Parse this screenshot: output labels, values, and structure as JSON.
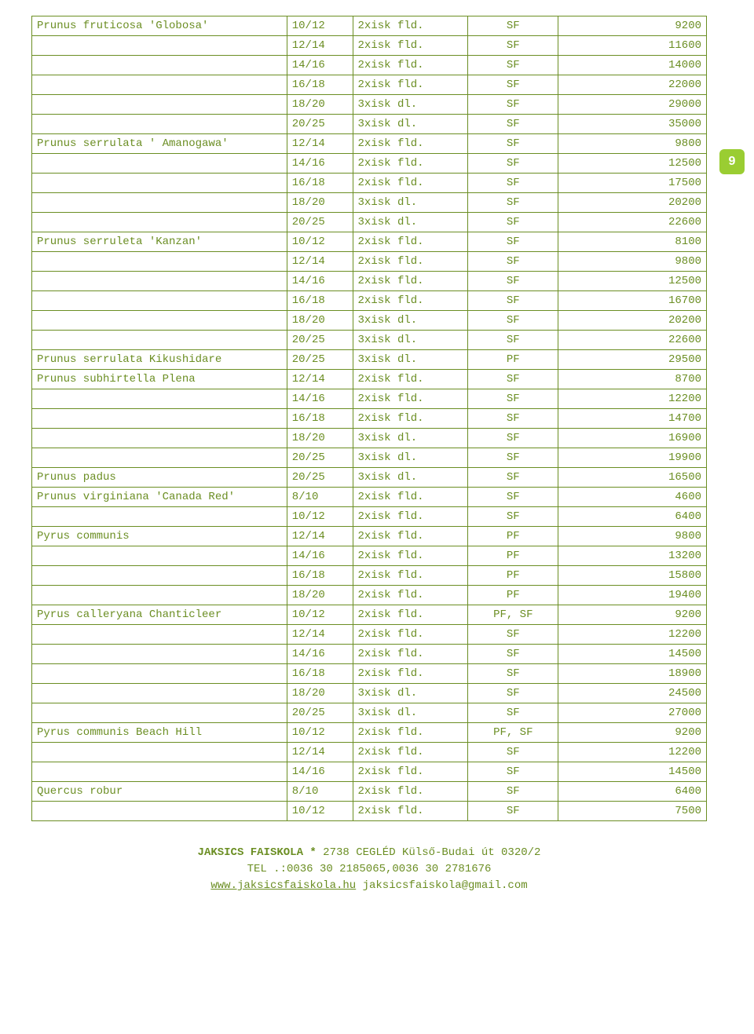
{
  "page_number": "9",
  "table": {
    "rows": [
      {
        "name": "Prunus fruticosa 'Globosa'",
        "size": "10/12",
        "spec": "2xisk fld.",
        "code": "SF",
        "price": "9200"
      },
      {
        "name": "",
        "size": "12/14",
        "spec": "2xisk fld.",
        "code": "SF",
        "price": "11600"
      },
      {
        "name": "",
        "size": "14/16",
        "spec": "2xisk fld.",
        "code": "SF",
        "price": "14000"
      },
      {
        "name": "",
        "size": "16/18",
        "spec": "2xisk fld.",
        "code": "SF",
        "price": "22000"
      },
      {
        "name": "",
        "size": "18/20",
        "spec": "3xisk dl.",
        "code": "SF",
        "price": "29000"
      },
      {
        "name": "",
        "size": "20/25",
        "spec": "3xisk dl.",
        "code": "SF",
        "price": "35000"
      },
      {
        "name": "Prunus serrulata ' Amanogawa'",
        "size": "12/14",
        "spec": "2xisk fld.",
        "code": "SF",
        "price": "9800"
      },
      {
        "name": "",
        "size": "14/16",
        "spec": "2xisk fld.",
        "code": "SF",
        "price": "12500"
      },
      {
        "name": "",
        "size": "16/18",
        "spec": "2xisk fld.",
        "code": "SF",
        "price": "17500"
      },
      {
        "name": "",
        "size": "18/20",
        "spec": "3xisk dl.",
        "code": "SF",
        "price": "20200"
      },
      {
        "name": "",
        "size": "20/25",
        "spec": "3xisk dl.",
        "code": "SF",
        "price": "22600"
      },
      {
        "name": "Prunus serruleta 'Kanzan'",
        "size": "10/12",
        "spec": "2xisk fld.",
        "code": "SF",
        "price": "8100"
      },
      {
        "name": "",
        "size": "12/14",
        "spec": "2xisk fld.",
        "code": "SF",
        "price": "9800"
      },
      {
        "name": "",
        "size": "14/16",
        "spec": "2xisk fld.",
        "code": "SF",
        "price": "12500"
      },
      {
        "name": "",
        "size": "16/18",
        "spec": "2xisk fld.",
        "code": "SF",
        "price": "16700"
      },
      {
        "name": "",
        "size": "18/20",
        "spec": "3xisk dl.",
        "code": "SF",
        "price": "20200"
      },
      {
        "name": "",
        "size": "20/25",
        "spec": "3xisk dl.",
        "code": "SF",
        "price": "22600"
      },
      {
        "name": "Prunus serrulata Kikushidare",
        "size": "20/25",
        "spec": "3xisk dl.",
        "code": "PF",
        "price": "29500"
      },
      {
        "name": "Prunus subhirtella Plena",
        "size": "12/14",
        "spec": "2xisk fld.",
        "code": "SF",
        "price": "8700"
      },
      {
        "name": "",
        "size": "14/16",
        "spec": "2xisk fld.",
        "code": "SF",
        "price": "12200"
      },
      {
        "name": "",
        "size": "16/18",
        "spec": "2xisk fld.",
        "code": "SF",
        "price": "14700"
      },
      {
        "name": "",
        "size": "18/20",
        "spec": "3xisk dl.",
        "code": "SF",
        "price": "16900"
      },
      {
        "name": "",
        "size": "20/25",
        "spec": "3xisk dl.",
        "code": "SF",
        "price": "19900"
      },
      {
        "name": "Prunus padus",
        "size": "20/25",
        "spec": "3xisk dl.",
        "code": "SF",
        "price": "16500"
      },
      {
        "name": "Prunus virginiana 'Canada Red'",
        "size": "8/10",
        "spec": "2xisk fld.",
        "code": "SF",
        "price": "4600"
      },
      {
        "name": "",
        "size": "10/12",
        "spec": "2xisk fld.",
        "code": "SF",
        "price": "6400"
      },
      {
        "name": "Pyrus communis",
        "size": "12/14",
        "spec": "2xisk fld.",
        "code": "PF",
        "price": "9800"
      },
      {
        "name": "",
        "size": "14/16",
        "spec": "2xisk fld.",
        "code": "PF",
        "price": "13200"
      },
      {
        "name": "",
        "size": "16/18",
        "spec": "2xisk fld.",
        "code": "PF",
        "price": "15800"
      },
      {
        "name": "",
        "size": "18/20",
        "spec": "2xisk fld.",
        "code": "PF",
        "price": "19400"
      },
      {
        "name": "Pyrus calleryana Chanticleer",
        "size": "10/12",
        "spec": "2xisk fld.",
        "code": "PF, SF",
        "price": "9200"
      },
      {
        "name": "",
        "size": "12/14",
        "spec": "2xisk fld.",
        "code": "SF",
        "price": "12200"
      },
      {
        "name": "",
        "size": "14/16",
        "spec": "2xisk fld.",
        "code": "SF",
        "price": "14500"
      },
      {
        "name": "",
        "size": "16/18",
        "spec": "2xisk fld.",
        "code": "SF",
        "price": "18900"
      },
      {
        "name": "",
        "size": "18/20",
        "spec": "3xisk dl.",
        "code": "SF",
        "price": "24500"
      },
      {
        "name": "",
        "size": "20/25",
        "spec": "3xisk dl.",
        "code": "SF",
        "price": "27000"
      },
      {
        "name": "Pyrus communis Beach Hill",
        "size": "10/12",
        "spec": "2xisk fld.",
        "code": "PF, SF",
        "price": "9200"
      },
      {
        "name": "",
        "size": "12/14",
        "spec": "2xisk fld.",
        "code": "SF",
        "price": "12200"
      },
      {
        "name": "",
        "size": "14/16",
        "spec": "2xisk fld.",
        "code": "SF",
        "price": "14500"
      },
      {
        "name": "Quercus robur",
        "size": "8/10",
        "spec": "2xisk fld.",
        "code": "SF",
        "price": "6400"
      },
      {
        "name": "",
        "size": "10/12",
        "spec": "2xisk fld.",
        "code": "SF",
        "price": "7500"
      }
    ]
  },
  "footer": {
    "line1_bold": "JAKSICS FAISKOLA *",
    "line1_rest": "  2738 CEGLÉD Külső-Budai út 0320/2",
    "line2": "TEL .:0036 30 2185065,0036 30 2781676",
    "link": "www.jaksicsfaiskola.hu",
    "email": "  jaksicsfaiskola@gmail.com"
  }
}
